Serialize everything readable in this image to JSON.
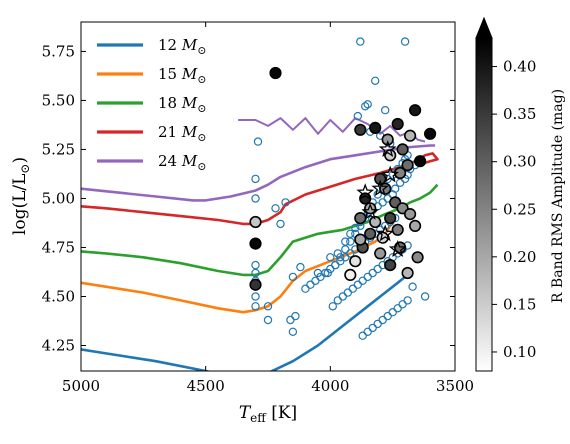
{
  "chart_data": {
    "type": "scatter",
    "xlabel_main": "T",
    "xlabel_sub": "eff",
    "xlabel_unit": " [K]",
    "ylabel_text": "log(L/L",
    "ylabel_end": ")",
    "xlim": [
      5000,
      3500
    ],
    "ylim": [
      4.12,
      5.9
    ],
    "x_ticks": [
      5000,
      4500,
      4000,
      3500
    ],
    "x_tick_labels": [
      "5000",
      "4500",
      "4000",
      "3500"
    ],
    "y_ticks": [
      4.25,
      4.5,
      4.75,
      5.0,
      5.25,
      5.5,
      5.75
    ],
    "y_tick_labels": [
      "4.25",
      "4.50",
      "4.75",
      "5.00",
      "5.25",
      "5.50",
      "5.75"
    ],
    "legend_position": "top-left",
    "tracks": [
      {
        "mass": "12 M",
        "color": "#1f77b4",
        "x": [
          5000,
          4900,
          4700,
          4500,
          4400,
          4330,
          4250,
          4150,
          4050,
          3950,
          3850,
          3780,
          3730,
          3700
        ],
        "y": [
          4.23,
          4.21,
          4.17,
          4.12,
          4.09,
          4.08,
          4.11,
          4.17,
          4.25,
          4.35,
          4.45,
          4.52,
          4.57,
          4.6
        ]
      },
      {
        "mass": "15 M",
        "color": "#ff7f0e",
        "x": [
          5000,
          4900,
          4750,
          4600,
          4450,
          4350,
          4300,
          4250,
          4200,
          4150,
          4100,
          4000,
          3900,
          3820,
          3780,
          3760,
          3740
        ],
        "y": [
          4.57,
          4.55,
          4.52,
          4.48,
          4.44,
          4.42,
          4.43,
          4.45,
          4.5,
          4.58,
          4.63,
          4.68,
          4.73,
          4.78,
          4.82,
          4.86,
          4.9
        ]
      },
      {
        "mass": "18 M",
        "color": "#2ca02c",
        "x": [
          5000,
          4900,
          4750,
          4600,
          4450,
          4350,
          4300,
          4250,
          4200,
          4150,
          4050,
          3950,
          3850,
          3780,
          3720,
          3680,
          3640,
          3600,
          3570
        ],
        "y": [
          4.73,
          4.72,
          4.7,
          4.67,
          4.63,
          4.61,
          4.61,
          4.63,
          4.7,
          4.78,
          4.82,
          4.84,
          4.88,
          4.92,
          4.95,
          4.98,
          5.0,
          5.03,
          5.07
        ]
      },
      {
        "mass": "21 M",
        "color": "#d62728",
        "x": [
          5000,
          4900,
          4750,
          4600,
          4450,
          4350,
          4300,
          4250,
          4200,
          4180,
          4100,
          4000,
          3900,
          3800,
          3720,
          3660,
          3620,
          3590,
          3570,
          3600,
          3650
        ],
        "y": [
          4.96,
          4.95,
          4.93,
          4.91,
          4.89,
          4.87,
          4.87,
          4.89,
          4.93,
          4.97,
          5.02,
          5.06,
          5.1,
          5.13,
          5.16,
          5.19,
          5.22,
          5.23,
          5.2,
          5.19,
          5.17
        ]
      },
      {
        "mass": "24 M",
        "color": "#9467bd",
        "x": [
          5000,
          4850,
          4700,
          4550,
          4500,
          4400,
          4300,
          4250,
          4200,
          4100,
          4000,
          3900,
          3800,
          3700,
          3600,
          3580
        ],
        "y": [
          5.05,
          5.03,
          5.01,
          4.99,
          4.99,
          5.01,
          5.04,
          5.07,
          5.11,
          5.16,
          5.2,
          5.22,
          5.24,
          5.26,
          5.27,
          5.27
        ]
      }
    ],
    "track_24_loops": {
      "x": [
        4370,
        4300,
        4250,
        4200,
        4150,
        4100,
        4050,
        4000,
        3950,
        3900,
        3850,
        3800,
        3760,
        3720,
        3680,
        3650,
        3620
      ],
      "y": [
        5.4,
        5.4,
        5.37,
        5.41,
        5.35,
        5.41,
        5.33,
        5.4,
        5.34,
        5.41,
        5.38,
        5.33,
        5.37,
        5.32,
        5.34,
        5.3,
        5.29
      ]
    },
    "open_circles": {
      "color": "#1f77b4",
      "x": [
        3880,
        3850,
        3700,
        3820,
        3780,
        3860,
        3890,
        3840,
        3800,
        3760,
        4290,
        4300,
        4300,
        4220,
        4180,
        4200,
        4150,
        4120,
        4050,
        4000,
        3970,
        3940,
        3920,
        3900,
        3880,
        3870,
        3850,
        3830,
        3810,
        3790,
        3770,
        3750,
        3740,
        3720,
        3700,
        3690,
        3680,
        3660,
        4010,
        3980,
        3960,
        3940,
        3920,
        3900,
        3880,
        3860,
        3850,
        3830,
        3810,
        3790,
        3770,
        3750,
        3730,
        3710,
        3700,
        3690,
        4100,
        4080,
        4060,
        4040,
        4020,
        4000,
        3980,
        3960,
        3940,
        3920,
        3900,
        3880,
        3860,
        3840,
        3820,
        3800,
        3780,
        3760,
        3740,
        4300,
        4300,
        4300,
        4300,
        4300,
        4300,
        4250,
        4250,
        4160,
        4150,
        4140,
        3990,
        3970,
        3950,
        3930,
        3910,
        3890,
        3870,
        3850,
        3830,
        3810,
        3790,
        3770,
        3750,
        3730,
        3710,
        3690,
        3870,
        3850,
        3830,
        3810,
        3790,
        3770,
        3750,
        3730,
        3710,
        3690,
        3670,
        3620
      ],
      "y": [
        5.8,
        5.48,
        5.8,
        5.6,
        5.45,
        5.47,
        5.42,
        5.34,
        5.32,
        5.28,
        5.29,
        5.1,
        5.0,
        4.95,
        4.98,
        4.87,
        4.6,
        4.65,
        4.62,
        4.7,
        4.72,
        4.78,
        4.82,
        4.85,
        4.88,
        4.9,
        4.92,
        4.94,
        4.96,
        4.98,
        5.0,
        5.02,
        5.05,
        5.08,
        5.1,
        5.12,
        5.15,
        5.17,
        4.62,
        4.66,
        4.7,
        4.74,
        4.78,
        4.82,
        4.86,
        4.9,
        4.94,
        4.98,
        5.02,
        5.06,
        5.1,
        5.12,
        5.15,
        5.18,
        5.2,
        5.22,
        4.54,
        4.56,
        4.58,
        4.6,
        4.62,
        4.64,
        4.66,
        4.68,
        4.7,
        4.72,
        4.74,
        4.76,
        4.78,
        4.8,
        4.82,
        4.84,
        4.86,
        4.88,
        4.9,
        4.66,
        4.62,
        4.58,
        4.55,
        4.5,
        4.45,
        4.45,
        4.38,
        4.38,
        4.32,
        4.4,
        4.45,
        4.48,
        4.5,
        4.52,
        4.54,
        4.56,
        4.58,
        4.6,
        4.62,
        4.64,
        4.66,
        4.68,
        4.7,
        4.72,
        4.74,
        4.76,
        4.3,
        4.32,
        4.34,
        4.36,
        4.38,
        4.4,
        4.42,
        4.44,
        4.46,
        4.48,
        4.55,
        4.5
      ]
    },
    "filled_circles": [
      {
        "x": 4220,
        "y": 5.64,
        "amp": 0.42
      },
      {
        "x": 3660,
        "y": 5.45,
        "amp": 0.4
      },
      {
        "x": 3730,
        "y": 5.38,
        "amp": 0.38
      },
      {
        "x": 3600,
        "y": 5.33,
        "amp": 0.42
      },
      {
        "x": 3880,
        "y": 5.35,
        "amp": 0.35
      },
      {
        "x": 3820,
        "y": 5.36,
        "amp": 0.4
      },
      {
        "x": 3770,
        "y": 5.3,
        "amp": 0.22
      },
      {
        "x": 3680,
        "y": 5.32,
        "amp": 0.18
      },
      {
        "x": 3710,
        "y": 5.25,
        "amp": 0.3
      },
      {
        "x": 3640,
        "y": 5.19,
        "amp": 0.43
      },
      {
        "x": 3760,
        "y": 5.22,
        "amp": 0.15
      },
      {
        "x": 3690,
        "y": 5.17,
        "amp": 0.28
      },
      {
        "x": 3720,
        "y": 5.13,
        "amp": 0.25
      },
      {
        "x": 3800,
        "y": 5.1,
        "amp": 0.32
      },
      {
        "x": 3860,
        "y": 5.0,
        "amp": 0.38
      },
      {
        "x": 3780,
        "y": 5.05,
        "amp": 0.26
      },
      {
        "x": 3840,
        "y": 4.95,
        "amp": 0.2
      },
      {
        "x": 3740,
        "y": 4.98,
        "amp": 0.3
      },
      {
        "x": 3710,
        "y": 4.95,
        "amp": 0.24
      },
      {
        "x": 3880,
        "y": 4.9,
        "amp": 0.28
      },
      {
        "x": 3820,
        "y": 4.88,
        "amp": 0.18
      },
      {
        "x": 3760,
        "y": 4.9,
        "amp": 0.34
      },
      {
        "x": 3680,
        "y": 4.92,
        "amp": 0.22
      },
      {
        "x": 3840,
        "y": 4.82,
        "amp": 0.3
      },
      {
        "x": 3790,
        "y": 4.8,
        "amp": 0.14
      },
      {
        "x": 3730,
        "y": 4.84,
        "amp": 0.26
      },
      {
        "x": 3660,
        "y": 4.86,
        "amp": 0.2
      },
      {
        "x": 3870,
        "y": 4.75,
        "amp": 0.32
      },
      {
        "x": 3800,
        "y": 4.72,
        "amp": 0.22
      },
      {
        "x": 3720,
        "y": 4.75,
        "amp": 0.28
      },
      {
        "x": 3650,
        "y": 4.7,
        "amp": 0.24
      },
      {
        "x": 3900,
        "y": 4.68,
        "amp": 0.12
      },
      {
        "x": 3760,
        "y": 4.66,
        "amp": 0.34
      },
      {
        "x": 3690,
        "y": 4.62,
        "amp": 0.18
      },
      {
        "x": 4300,
        "y": 4.88,
        "amp": 0.16
      },
      {
        "x": 4300,
        "y": 4.77,
        "amp": 0.42
      },
      {
        "x": 4300,
        "y": 4.56,
        "amp": 0.36
      },
      {
        "x": 3920,
        "y": 4.61,
        "amp": 0.1
      },
      {
        "x": 3880,
        "y": 4.79,
        "amp": 0.2
      }
    ],
    "stars": [
      {
        "x": 3860,
        "y": 5.03
      },
      {
        "x": 3800,
        "y": 5.05
      },
      {
        "x": 3760,
        "y": 5.12
      },
      {
        "x": 3840,
        "y": 4.93
      },
      {
        "x": 3780,
        "y": 4.82
      },
      {
        "x": 3730,
        "y": 4.74
      },
      {
        "x": 3770,
        "y": 5.25
      }
    ],
    "colorbar": {
      "label": "R Band RMS Amplitude (mag)",
      "min": 0.08,
      "max": 0.43,
      "ticks": [
        0.1,
        0.15,
        0.2,
        0.25,
        0.3,
        0.35,
        0.4
      ],
      "tick_labels": [
        "0.10",
        "0.15",
        "0.20",
        "0.25",
        "0.30",
        "0.35",
        "0.40"
      ],
      "extend": "max"
    }
  }
}
